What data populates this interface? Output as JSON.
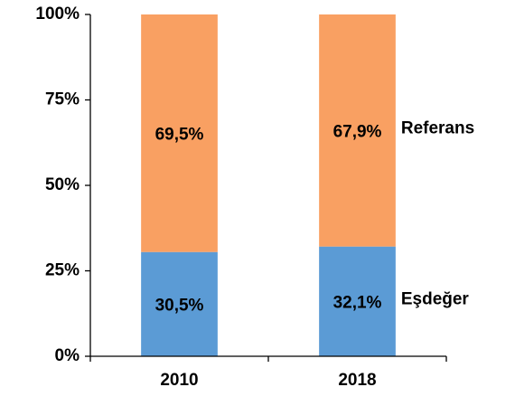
{
  "chart_data": {
    "type": "stacked-bar",
    "categories": [
      "2010",
      "2018"
    ],
    "series": [
      {
        "name": "Eşdeğer",
        "color": "#5b9bd5",
        "values": [
          30.5,
          32.1
        ],
        "value_labels": [
          "30,5%",
          "32,1%"
        ]
      },
      {
        "name": "Referans",
        "color": "#f9a062",
        "values": [
          69.5,
          67.9
        ],
        "value_labels": [
          "69,5%",
          "67,9%"
        ]
      }
    ],
    "ylim": [
      0,
      100
    ],
    "yticks": [
      {
        "value": 0,
        "label": "0%"
      },
      {
        "value": 25,
        "label": "25%"
      },
      {
        "value": 50,
        "label": "50%"
      },
      {
        "value": 75,
        "label": "75%"
      },
      {
        "value": 100,
        "label": "100%"
      }
    ]
  }
}
